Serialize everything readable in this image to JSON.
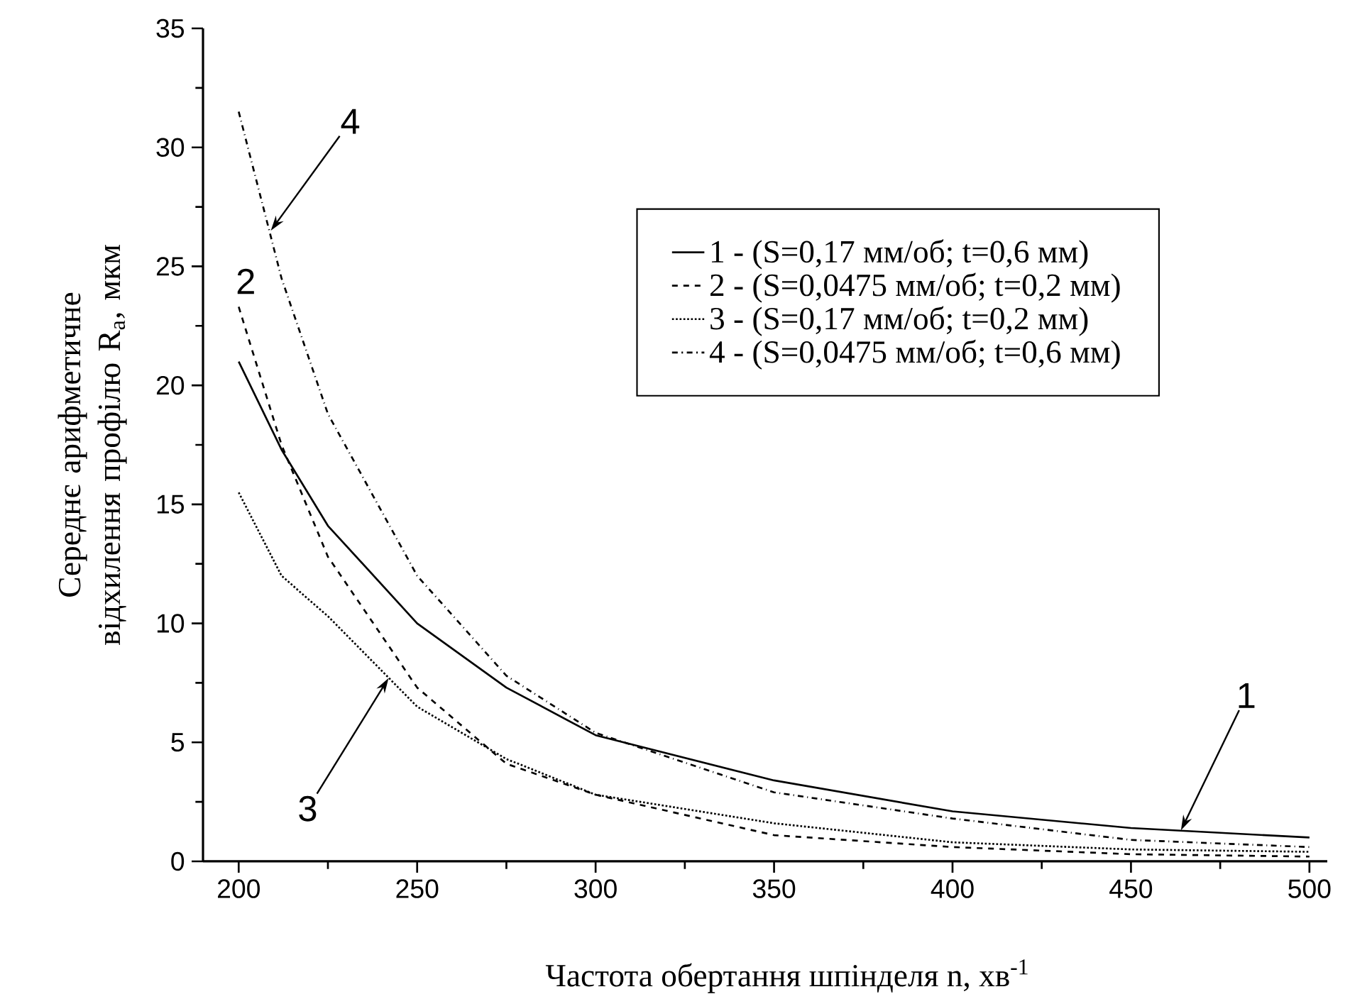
{
  "chart_data": {
    "type": "line",
    "xlabel": "Частота обертання шпінделя n, хв$^{-1}$",
    "ylabel": "Середнє арифметичне відхилення профілю R$_{a}$, мкм",
    "x": [
      200,
      212,
      225,
      250,
      275,
      300,
      350,
      400,
      450,
      500
    ],
    "xlim": [
      190,
      505
    ],
    "xticks": [
      200,
      250,
      300,
      350,
      400,
      450,
      500
    ],
    "ylim": [
      0,
      35
    ],
    "yticks": [
      0,
      5,
      10,
      15,
      20,
      25,
      30,
      35
    ],
    "legend": "top right",
    "marker": "none",
    "series": [
      {
        "name": "1 - (S=0,17 мм/об; t=0,6 мм)",
        "color": "#000000",
        "line_style": "solid",
        "values": [
          21,
          17.3,
          14.1,
          10,
          7.3,
          5.3,
          3.4,
          2.1,
          1.4,
          1.0
        ]
      },
      {
        "name": "2 - (S=0,0475 мм/об; t=0,2 мм)",
        "color": "#000000",
        "line_style": "dashed",
        "values": [
          23.3,
          17.5,
          12.8,
          7.3,
          4.1,
          2.8,
          1.1,
          0.6,
          0.3,
          0.2
        ]
      },
      {
        "name": "3 - (S=0,17 мм/об; t=0,2 мм)",
        "color": "#000000",
        "line_style": "dotted",
        "values": [
          15.5,
          12,
          10.3,
          6.5,
          4.3,
          2.8,
          1.6,
          0.8,
          0.5,
          0.4
        ]
      },
      {
        "name": "4 - (S=0,0475 мм/об; t=0,6 мм)",
        "color": "#000000",
        "line_style": "dashdotted",
        "values": [
          31.5,
          24.5,
          18.8,
          12,
          7.8,
          5.4,
          2.9,
          1.8,
          0.9,
          0.6
        ]
      }
    ],
    "annotations": [
      {
        "text": "4",
        "x": 209,
        "y": 26.5
      },
      {
        "text": "2",
        "x": 200,
        "y": 23.3
      },
      {
        "text": "3",
        "x": 242,
        "y": 7.7
      },
      {
        "text": "1",
        "x": 464,
        "y": 1.3
      }
    ]
  }
}
